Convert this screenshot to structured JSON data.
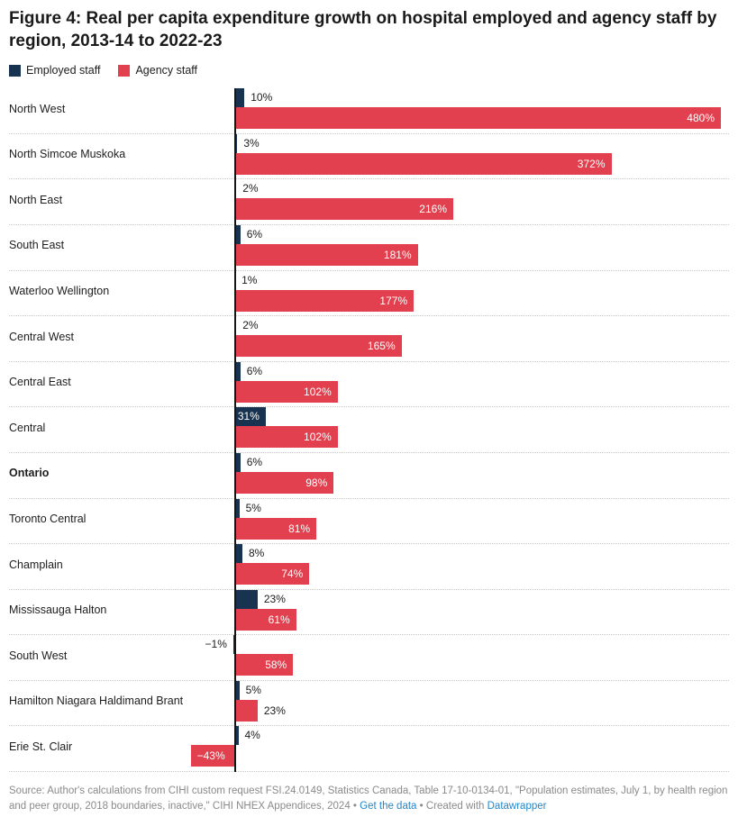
{
  "header": {
    "title": "Figure 4: Real per capita expenditure growth on hospital employed and agency staff by region, 2013-14 to 2022-23"
  },
  "legend": {
    "employed": "Employed staff",
    "agency": "Agency staff"
  },
  "colors": {
    "employed": "#18334f",
    "agency": "#e2404e",
    "link_blue": "#1e87cb",
    "footer_gray": "#8a8a8a",
    "axis": "#151515"
  },
  "chart_data": {
    "type": "bar",
    "orientation": "horizontal",
    "title": "Figure 4: Real per capita expenditure growth on hospital employed and agency staff by region, 2013-14 to 2022-23",
    "xlabel": "",
    "ylabel": "",
    "xlim": [
      -50,
      490
    ],
    "grid": false,
    "legend_position": "top-left",
    "bold_category": "Ontario",
    "categories": [
      "North West",
      "North Simcoe Muskoka",
      "North East",
      "South East",
      "Waterloo Wellington",
      "Central West",
      "Central East",
      "Central",
      "Ontario",
      "Toronto Central",
      "Champlain",
      "Mississauga Halton",
      "South West",
      "Hamilton Niagara Haldimand Brant",
      "Erie St. Clair"
    ],
    "series": [
      {
        "name": "Employed staff",
        "color": "#18334f",
        "values": [
          10,
          3,
          2,
          6,
          1,
          2,
          6,
          31,
          6,
          5,
          8,
          23,
          -1,
          5,
          4
        ],
        "labels": [
          "10%",
          "3%",
          "2%",
          "6%",
          "1%",
          "2%",
          "6%",
          "31%",
          "6%",
          "5%",
          "8%",
          "23%",
          "−1%",
          "5%",
          "4%"
        ],
        "label_inside": [
          false,
          false,
          false,
          false,
          false,
          false,
          false,
          true,
          false,
          false,
          false,
          false,
          false,
          false,
          false
        ]
      },
      {
        "name": "Agency staff",
        "color": "#e2404e",
        "values": [
          480,
          372,
          216,
          181,
          177,
          165,
          102,
          102,
          98,
          81,
          74,
          61,
          58,
          23,
          -43
        ],
        "labels": [
          "480%",
          "372%",
          "216%",
          "181%",
          "177%",
          "165%",
          "102%",
          "102%",
          "98%",
          "81%",
          "74%",
          "61%",
          "58%",
          "23%",
          "−43%"
        ],
        "label_inside": [
          true,
          true,
          true,
          true,
          true,
          true,
          true,
          true,
          true,
          true,
          true,
          true,
          true,
          false,
          true
        ]
      }
    ]
  },
  "footer": {
    "source_text": "Source: Author's calculations from CIHI custom request FSI.24.0149, Statistics Canada, Table 17-10-0134-01, \"Population estimates, July 1, by health region and peer group, 2018 boundaries, inactive,\" CIHI NHEX Appendices, 2024",
    "sep": " • ",
    "get_data_label": "Get the data",
    "created_with": "Created with ",
    "datawrapper_label": "Datawrapper"
  }
}
